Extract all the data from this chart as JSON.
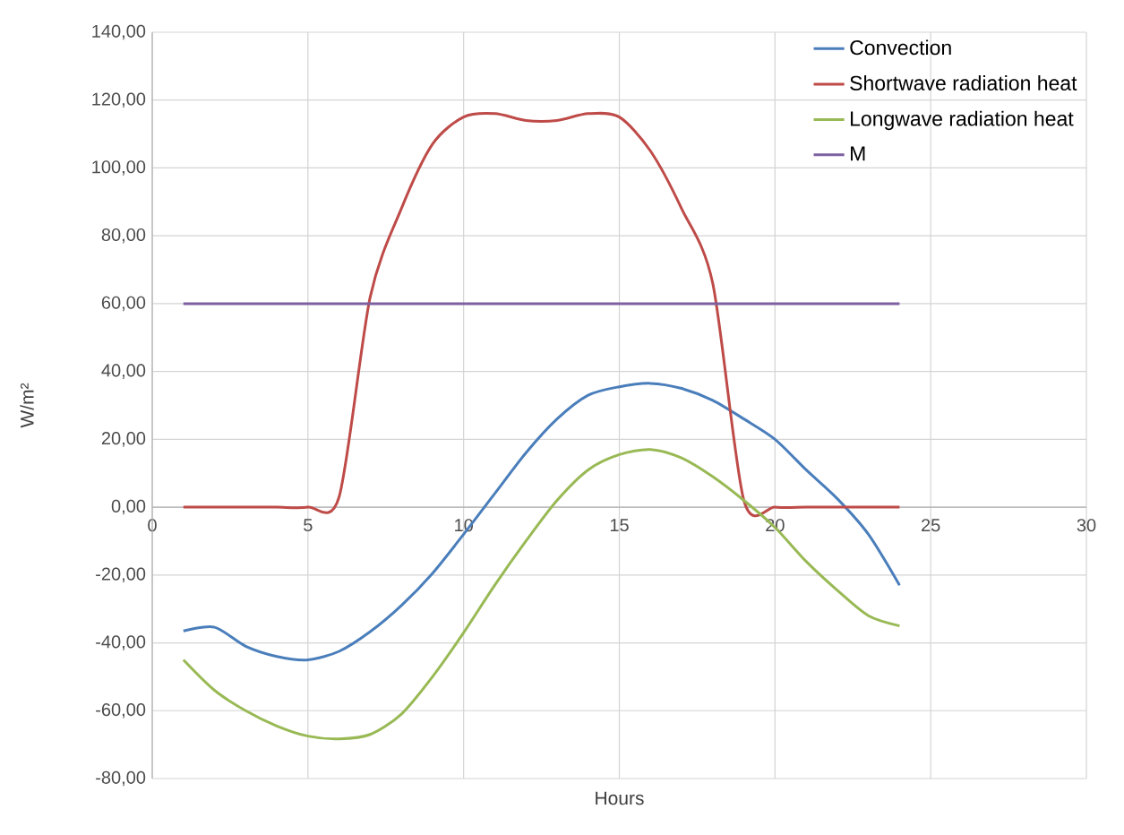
{
  "chart_data": {
    "type": "line",
    "xlabel": "Hours",
    "ylabel": "W/m²",
    "x": [
      1,
      2,
      3,
      4,
      5,
      6,
      7,
      8,
      9,
      10,
      11,
      12,
      13,
      14,
      15,
      16,
      17,
      18,
      19,
      20,
      21,
      22,
      23,
      24
    ],
    "series": [
      {
        "name": "Convection",
        "color": "#4a7ebb",
        "values": [
          -36.5,
          -35.4,
          -41,
          -44,
          -45,
          -42.5,
          -36.7,
          -29,
          -19.5,
          -8,
          4,
          16,
          26,
          33,
          35.5,
          36.5,
          35,
          31.5,
          26,
          20,
          11,
          2.5,
          -8,
          -23
        ]
      },
      {
        "name": "Shortwave radiation heat",
        "color": "#be4b48",
        "values": [
          0,
          0,
          0,
          0,
          0,
          3,
          62,
          88,
          107,
          115,
          116,
          114,
          114,
          116,
          115,
          105,
          88,
          66,
          2,
          0,
          0,
          0,
          0,
          0
        ]
      },
      {
        "name": "Longwave radiation heat",
        "color": "#98b954",
        "values": [
          -45,
          -54,
          -60,
          -64.5,
          -67.5,
          -68.3,
          -67,
          -61,
          -50,
          -37,
          -23,
          -10,
          2,
          11,
          15.5,
          17,
          14.5,
          9,
          2,
          -6,
          -16,
          -24.5,
          -32,
          -35
        ]
      },
      {
        "name": "M",
        "color": "#7d60a0",
        "values": [
          60,
          60,
          60,
          60,
          60,
          60,
          60,
          60,
          60,
          60,
          60,
          60,
          60,
          60,
          60,
          60,
          60,
          60,
          60,
          60,
          60,
          60,
          60,
          60
        ]
      }
    ],
    "xlim": [
      0,
      30
    ],
    "xticks": [
      0,
      5,
      10,
      15,
      20,
      25,
      30
    ],
    "ylim": [
      -80,
      140
    ],
    "yticks": [
      {
        "value": -80,
        "label": "-80,00"
      },
      {
        "value": -60,
        "label": "-60,00"
      },
      {
        "value": -40,
        "label": "-40,00"
      },
      {
        "value": -20,
        "label": "-20,00"
      },
      {
        "value": 0,
        "label": "0,00"
      },
      {
        "value": 20,
        "label": "20,00"
      },
      {
        "value": 40,
        "label": "40,00"
      },
      {
        "value": 60,
        "label": "60,00"
      },
      {
        "value": 80,
        "label": "80,00"
      },
      {
        "value": 100,
        "label": "100,00"
      },
      {
        "value": 120,
        "label": "120,00"
      },
      {
        "value": 140,
        "label": "140,00"
      }
    ],
    "grid": true,
    "legend": "top right",
    "marker": "none",
    "line_style": "solid"
  }
}
